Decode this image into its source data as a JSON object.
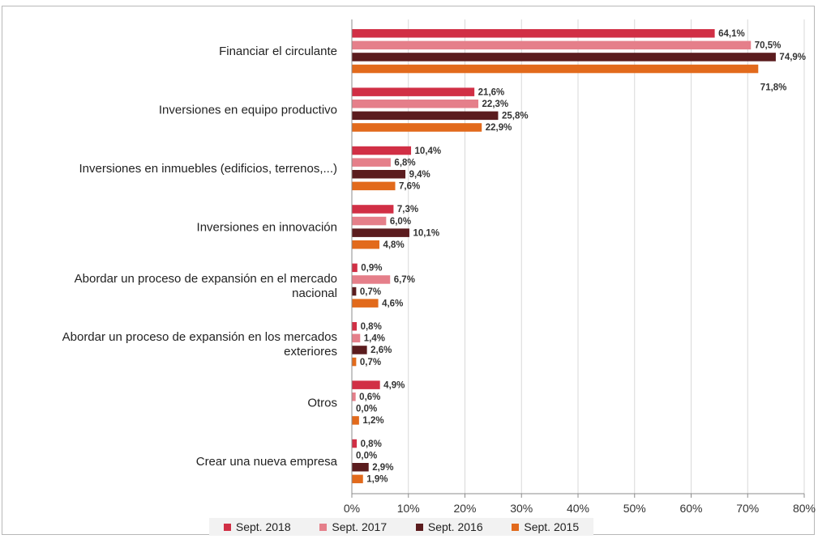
{
  "chart_data": {
    "type": "bar",
    "orientation": "horizontal",
    "categories": [
      [
        "Financiar el circulante"
      ],
      [
        "Inversiones en equipo productivo"
      ],
      [
        "Inversiones en inmuebles (edificios, terrenos,...)"
      ],
      [
        "Inversiones en innovación"
      ],
      [
        "Abordar un proceso de expansión en el mercado",
        "nacional"
      ],
      [
        "Abordar un proceso de expansión en los mercados",
        "exteriores"
      ],
      [
        "Otros"
      ],
      [
        "Crear una nueva empresa"
      ]
    ],
    "series": [
      {
        "name": "Sept. 2018",
        "color": "#d12f45",
        "values": [
          64.1,
          21.6,
          10.4,
          7.3,
          0.9,
          0.8,
          4.9,
          0.8
        ],
        "labels": [
          "64,1%",
          "21,6%",
          "10,4%",
          "7,3%",
          "0,9%",
          "0,8%",
          "4,9%",
          "0,8%"
        ]
      },
      {
        "name": "Sept. 2017",
        "color": "#e57f8a",
        "values": [
          70.5,
          22.3,
          6.8,
          6.0,
          6.7,
          1.4,
          0.6,
          0.0
        ],
        "labels": [
          "70,5%",
          "22,3%",
          "6,8%",
          "6,0%",
          "6,7%",
          "1,4%",
          "0,6%",
          "0,0%"
        ]
      },
      {
        "name": "Sept. 2016",
        "color": "#5b1c1e",
        "values": [
          74.9,
          25.8,
          9.4,
          10.1,
          0.7,
          2.6,
          0.0,
          2.9
        ],
        "labels": [
          "74,9%",
          "25,8%",
          "9,4%",
          "10,1%",
          "0,7%",
          "2,6%",
          "0,0%",
          "2,9%"
        ]
      },
      {
        "name": "Sept. 2015",
        "color": "#e26a1c",
        "values": [
          71.8,
          22.9,
          7.6,
          4.8,
          4.6,
          0.7,
          1.2,
          1.9
        ],
        "labels": [
          "71,8%",
          "22,9%",
          "7,6%",
          "4,8%",
          "4,6%",
          "0,7%",
          "1,2%",
          "1,9%"
        ]
      }
    ],
    "x_ticks": [
      "0%",
      "10%",
      "20%",
      "30%",
      "40%",
      "50%",
      "60%",
      "70%",
      "80%"
    ],
    "xlim": [
      0,
      80
    ],
    "grid": true,
    "legend_position": "bottom"
  }
}
